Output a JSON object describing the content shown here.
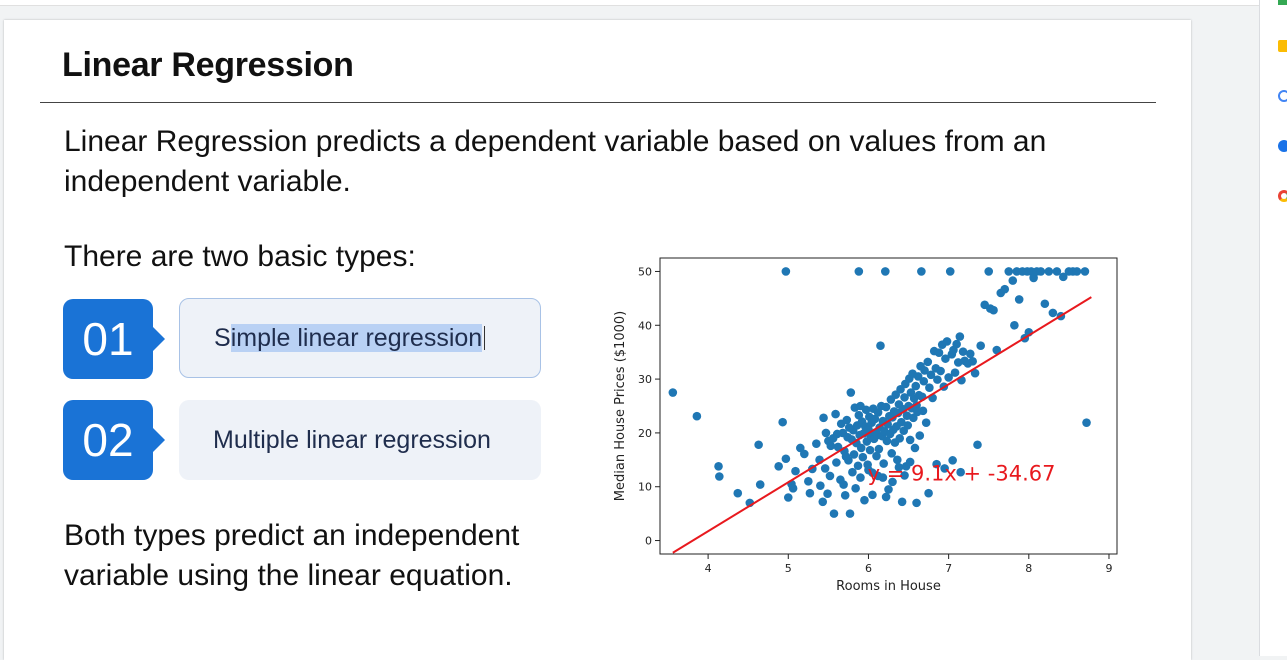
{
  "slide": {
    "title": "Linear Regression",
    "intro": "Linear Regression predicts a dependent variable based on values from an independent variable.",
    "types_heading": "There are two basic types:",
    "items": [
      {
        "number": "01",
        "pre": "S",
        "highlight": "imple linear regression",
        "post": ""
      },
      {
        "number": "02",
        "label": "Multiple linear regression"
      }
    ],
    "closing": "Both types predict an independent variable using the linear equation."
  },
  "colors": {
    "accent": "#1a73d6",
    "line": "#e8191e",
    "points": "#1f77b4"
  },
  "chart_data": {
    "type": "scatter",
    "xlabel": "Rooms in House",
    "ylabel": "Median House Prices ($1000)",
    "xlim": [
      3.4,
      9.1
    ],
    "ylim": [
      -2.5,
      52.5
    ],
    "xticks": [
      4,
      5,
      6,
      7,
      8,
      9
    ],
    "yticks": [
      0,
      10,
      20,
      30,
      40,
      50
    ],
    "equation": "y = 9.1x + -34.67",
    "regression_line": {
      "slope": 9.1,
      "intercept": -34.67,
      "x_range": [
        3.56,
        8.78
      ]
    },
    "points": [
      [
        3.56,
        27.5
      ],
      [
        3.86,
        23.1
      ],
      [
        4.13,
        13.8
      ],
      [
        4.14,
        11.9
      ],
      [
        4.37,
        8.8
      ],
      [
        4.52,
        7.0
      ],
      [
        4.63,
        17.8
      ],
      [
        4.65,
        10.4
      ],
      [
        4.97,
        50
      ],
      [
        4.88,
        13.8
      ],
      [
        4.93,
        22.0
      ],
      [
        4.97,
        15.2
      ],
      [
        5.0,
        8.0
      ],
      [
        5.04,
        10.5
      ],
      [
        5.06,
        9.7
      ],
      [
        5.09,
        12.9
      ],
      [
        5.15,
        17.2
      ],
      [
        5.2,
        16.1
      ],
      [
        5.25,
        11.0
      ],
      [
        5.27,
        8.8
      ],
      [
        5.3,
        13.3
      ],
      [
        5.35,
        18.0
      ],
      [
        5.39,
        15.0
      ],
      [
        5.4,
        10.2
      ],
      [
        5.43,
        7.2
      ],
      [
        5.46,
        13.4
      ],
      [
        5.47,
        20.0
      ],
      [
        5.49,
        8.7
      ],
      [
        5.5,
        18.5
      ],
      [
        5.52,
        12.0
      ],
      [
        5.56,
        19.0
      ],
      [
        5.57,
        5.0
      ],
      [
        5.59,
        23.5
      ],
      [
        5.6,
        14.5
      ],
      [
        5.62,
        17.4
      ],
      [
        5.65,
        11.3
      ],
      [
        5.66,
        21.7
      ],
      [
        5.68,
        20.0
      ],
      [
        5.69,
        10.4
      ],
      [
        5.7,
        16.6
      ],
      [
        5.71,
        8.4
      ],
      [
        5.73,
        22.4
      ],
      [
        5.74,
        19.2
      ],
      [
        5.75,
        14.9
      ],
      [
        5.77,
        5.0
      ],
      [
        5.78,
        27.5
      ],
      [
        5.79,
        18.8
      ],
      [
        5.8,
        12.7
      ],
      [
        5.81,
        20.5
      ],
      [
        5.82,
        16.0
      ],
      [
        5.83,
        24.7
      ],
      [
        5.84,
        9.7
      ],
      [
        5.85,
        18.1
      ],
      [
        5.86,
        21.4
      ],
      [
        5.87,
        13.9
      ],
      [
        5.88,
        50
      ],
      [
        5.88,
        23.3
      ],
      [
        5.89,
        19.6
      ],
      [
        5.9,
        11.7
      ],
      [
        5.91,
        17.2
      ],
      [
        5.92,
        22.1
      ],
      [
        5.93,
        15.5
      ],
      [
        5.94,
        19.9
      ],
      [
        5.95,
        7.5
      ],
      [
        5.96,
        21.2
      ],
      [
        5.97,
        24.3
      ],
      [
        5.98,
        18.4
      ],
      [
        5.99,
        14.1
      ],
      [
        6.0,
        20.7
      ],
      [
        6.01,
        23.0
      ],
      [
        6.02,
        16.8
      ],
      [
        6.03,
        19.3
      ],
      [
        6.04,
        21.9
      ],
      [
        6.05,
        12.6
      ],
      [
        6.06,
        24.5
      ],
      [
        6.07,
        18.9
      ],
      [
        6.08,
        22.6
      ],
      [
        6.09,
        20.1
      ],
      [
        6.1,
        15.7
      ],
      [
        6.11,
        19.6
      ],
      [
        6.12,
        23.8
      ],
      [
        6.13,
        17.0
      ],
      [
        6.14,
        21.0
      ],
      [
        6.15,
        36.2
      ],
      [
        6.16,
        25.0
      ],
      [
        6.17,
        19.4
      ],
      [
        6.18,
        22.2
      ],
      [
        6.19,
        14.3
      ],
      [
        6.2,
        20.3
      ],
      [
        6.21,
        50
      ],
      [
        6.22,
        24.8
      ],
      [
        6.23,
        18.5
      ],
      [
        6.24,
        21.6
      ],
      [
        6.25,
        9.5
      ],
      [
        6.26,
        23.1
      ],
      [
        6.27,
        19.8
      ],
      [
        6.28,
        26.2
      ],
      [
        6.29,
        16.2
      ],
      [
        6.3,
        22.9
      ],
      [
        6.31,
        20.6
      ],
      [
        6.32,
        24.0
      ],
      [
        6.33,
        18.2
      ],
      [
        6.34,
        27.1
      ],
      [
        6.35,
        21.2
      ],
      [
        6.36,
        15.0
      ],
      [
        6.37,
        23.7
      ],
      [
        6.38,
        25.3
      ],
      [
        6.39,
        19.0
      ],
      [
        6.4,
        28.1
      ],
      [
        6.41,
        22.0
      ],
      [
        6.42,
        7.2
      ],
      [
        6.43,
        24.4
      ],
      [
        6.44,
        20.4
      ],
      [
        6.45,
        26.6
      ],
      [
        6.46,
        29.1
      ],
      [
        6.47,
        13.8
      ],
      [
        6.48,
        23.2
      ],
      [
        6.49,
        21.4
      ],
      [
        6.5,
        25.0
      ],
      [
        6.51,
        30.1
      ],
      [
        6.52,
        18.7
      ],
      [
        6.53,
        27.5
      ],
      [
        6.54,
        24.6
      ],
      [
        6.55,
        31.0
      ],
      [
        6.56,
        22.8
      ],
      [
        6.57,
        26.4
      ],
      [
        6.58,
        17.2
      ],
      [
        6.59,
        28.7
      ],
      [
        6.6,
        25.1
      ],
      [
        6.61,
        23.9
      ],
      [
        6.62,
        30.5
      ],
      [
        6.63,
        27.0
      ],
      [
        6.64,
        19.5
      ],
      [
        6.65,
        32.4
      ],
      [
        6.66,
        50
      ],
      [
        6.67,
        26.7
      ],
      [
        6.68,
        24.1
      ],
      [
        6.69,
        29.6
      ],
      [
        6.7,
        31.6
      ],
      [
        6.72,
        21.9
      ],
      [
        6.74,
        33.2
      ],
      [
        6.76,
        28.4
      ],
      [
        6.78,
        30.8
      ],
      [
        6.8,
        26.5
      ],
      [
        6.82,
        35.2
      ],
      [
        6.84,
        32.0
      ],
      [
        6.86,
        29.9
      ],
      [
        6.88,
        34.9
      ],
      [
        6.9,
        31.5
      ],
      [
        6.92,
        36.4
      ],
      [
        6.94,
        28.6
      ],
      [
        6.96,
        33.8
      ],
      [
        6.98,
        37.0
      ],
      [
        7.0,
        30.3
      ],
      [
        7.02,
        50
      ],
      [
        7.04,
        34.6
      ],
      [
        7.06,
        35.4
      ],
      [
        7.08,
        31.2
      ],
      [
        7.1,
        36.5
      ],
      [
        7.12,
        33.1
      ],
      [
        7.14,
        37.9
      ],
      [
        7.16,
        29.8
      ],
      [
        7.18,
        35.1
      ],
      [
        7.2,
        33.4
      ],
      [
        7.24,
        32.9
      ],
      [
        7.27,
        34.7
      ],
      [
        7.3,
        33.3
      ],
      [
        7.33,
        31.1
      ],
      [
        7.36,
        17.8
      ],
      [
        7.4,
        36.2
      ],
      [
        7.45,
        43.8
      ],
      [
        7.5,
        50
      ],
      [
        7.52,
        43.1
      ],
      [
        7.56,
        42.8
      ],
      [
        7.6,
        35.4
      ],
      [
        7.65,
        46.0
      ],
      [
        7.7,
        46.7
      ],
      [
        7.75,
        50
      ],
      [
        7.8,
        48.3
      ],
      [
        7.82,
        40.0
      ],
      [
        7.85,
        50
      ],
      [
        7.88,
        44.8
      ],
      [
        7.92,
        50
      ],
      [
        7.95,
        37.6
      ],
      [
        7.98,
        50
      ],
      [
        8.0,
        38.7
      ],
      [
        8.03,
        50
      ],
      [
        8.06,
        48.8
      ],
      [
        8.1,
        50
      ],
      [
        8.15,
        50
      ],
      [
        8.2,
        44.0
      ],
      [
        8.25,
        50
      ],
      [
        8.3,
        42.3
      ],
      [
        8.35,
        50
      ],
      [
        8.4,
        41.7
      ],
      [
        8.43,
        49.0
      ],
      [
        8.5,
        50
      ],
      [
        8.55,
        50
      ],
      [
        8.6,
        50
      ],
      [
        8.7,
        50
      ],
      [
        8.72,
        21.9
      ],
      [
        5.44,
        22.8
      ],
      [
        5.53,
        17.6
      ],
      [
        5.61,
        19.8
      ],
      [
        5.72,
        15.6
      ],
      [
        5.76,
        21.0
      ],
      [
        5.9,
        25.0
      ],
      [
        6.0,
        13.1
      ],
      [
        6.05,
        8.5
      ],
      [
        6.12,
        12.0
      ],
      [
        6.18,
        11.7
      ],
      [
        6.22,
        8.1
      ],
      [
        6.3,
        10.9
      ],
      [
        6.38,
        13.6
      ],
      [
        6.45,
        12.1
      ],
      [
        6.52,
        14.6
      ],
      [
        6.6,
        7.0
      ],
      [
        6.75,
        8.8
      ],
      [
        6.85,
        14.2
      ],
      [
        6.95,
        13.4
      ],
      [
        7.05,
        14.9
      ],
      [
        7.15,
        12.7
      ]
    ]
  }
}
